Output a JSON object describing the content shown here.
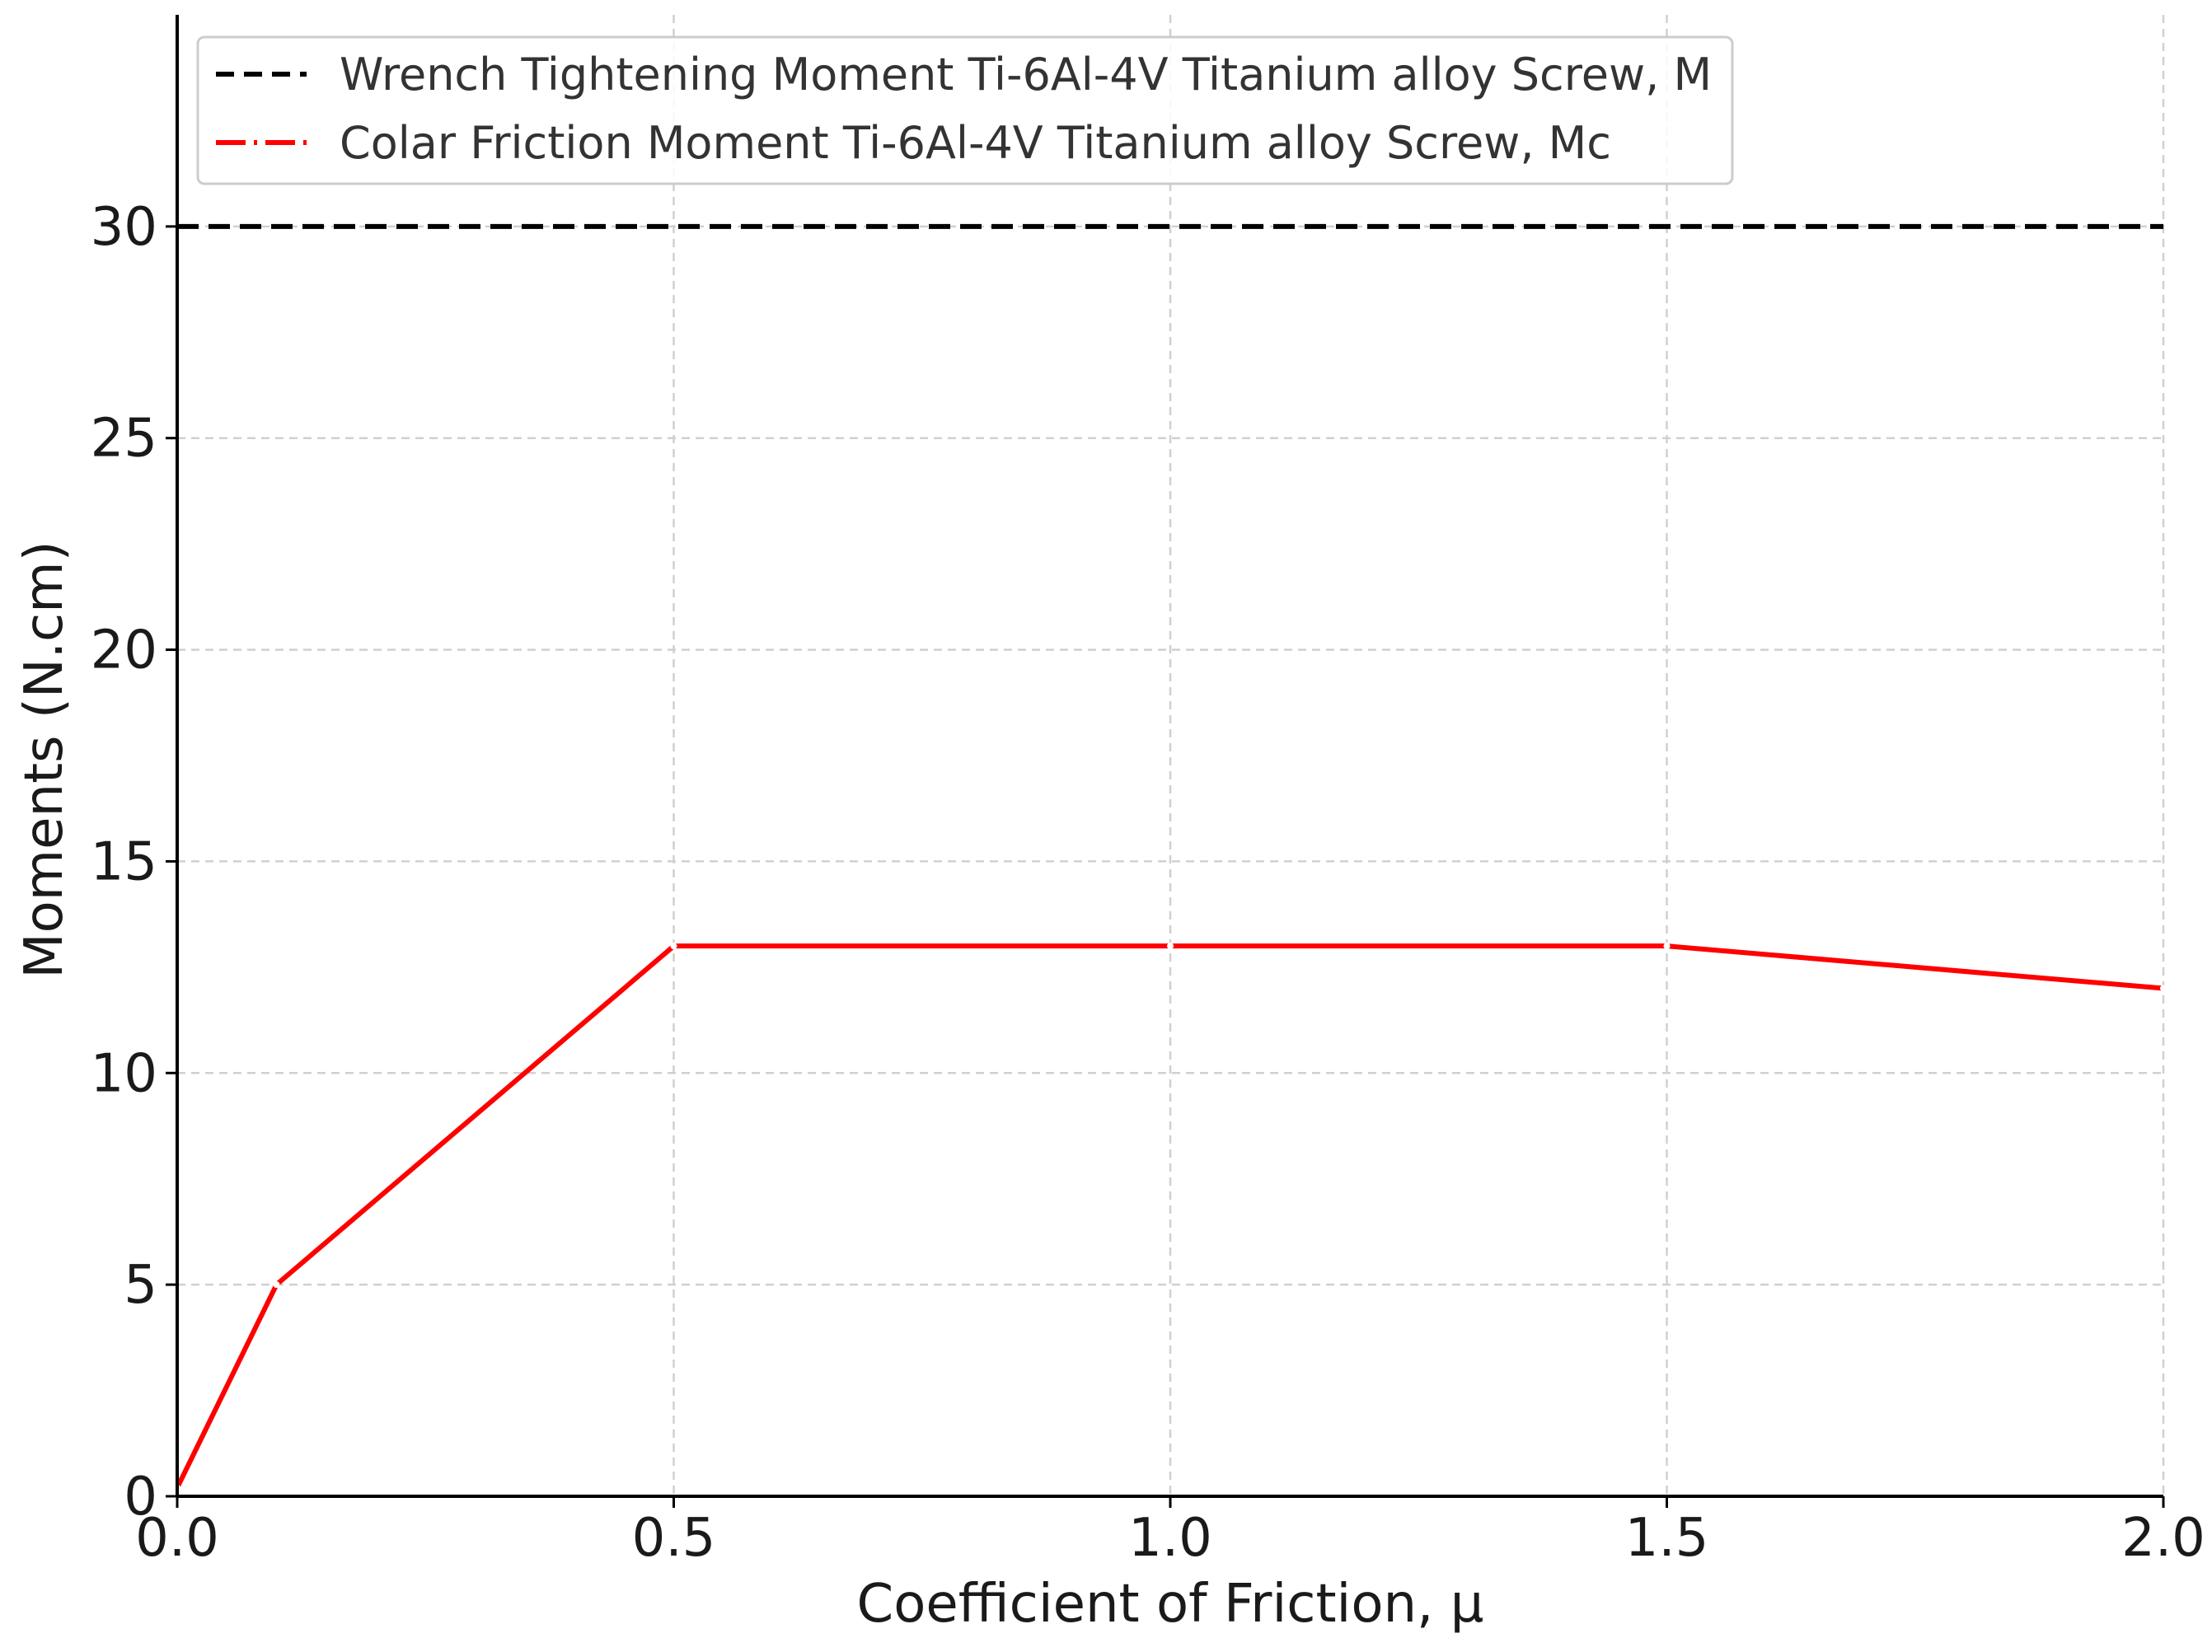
{
  "chart_data": {
    "type": "line",
    "xlabel": "Coefficient of Friction, μ",
    "ylabel": "Moments (N.cm)",
    "xlim": [
      0.0,
      2.0
    ],
    "ylim": [
      0,
      35
    ],
    "x_ticks": [
      "0.0",
      "0.5",
      "1.0",
      "1.5",
      "2.0"
    ],
    "y_ticks": [
      "0",
      "5",
      "10",
      "15",
      "20",
      "25",
      "30"
    ],
    "grid": true,
    "legend_position": "top-left",
    "series": [
      {
        "name": "Wrench Tightening Moment Ti-6Al-4V Titanium alloy Screw, M",
        "style": "dashed",
        "color": "#000000",
        "x": [
          0.0,
          2.0
        ],
        "values": [
          30,
          30
        ]
      },
      {
        "name": "Colar Friction Moment Ti-6Al-4V Titanium alloy Screw, Mc",
        "style": "dash-dot",
        "color": "#ff0000",
        "x": [
          0.0,
          0.1,
          0.5,
          1.0,
          1.5,
          2.0
        ],
        "values": [
          0.2,
          5.0,
          13.0,
          13.0,
          13.0,
          12.0
        ]
      }
    ]
  }
}
